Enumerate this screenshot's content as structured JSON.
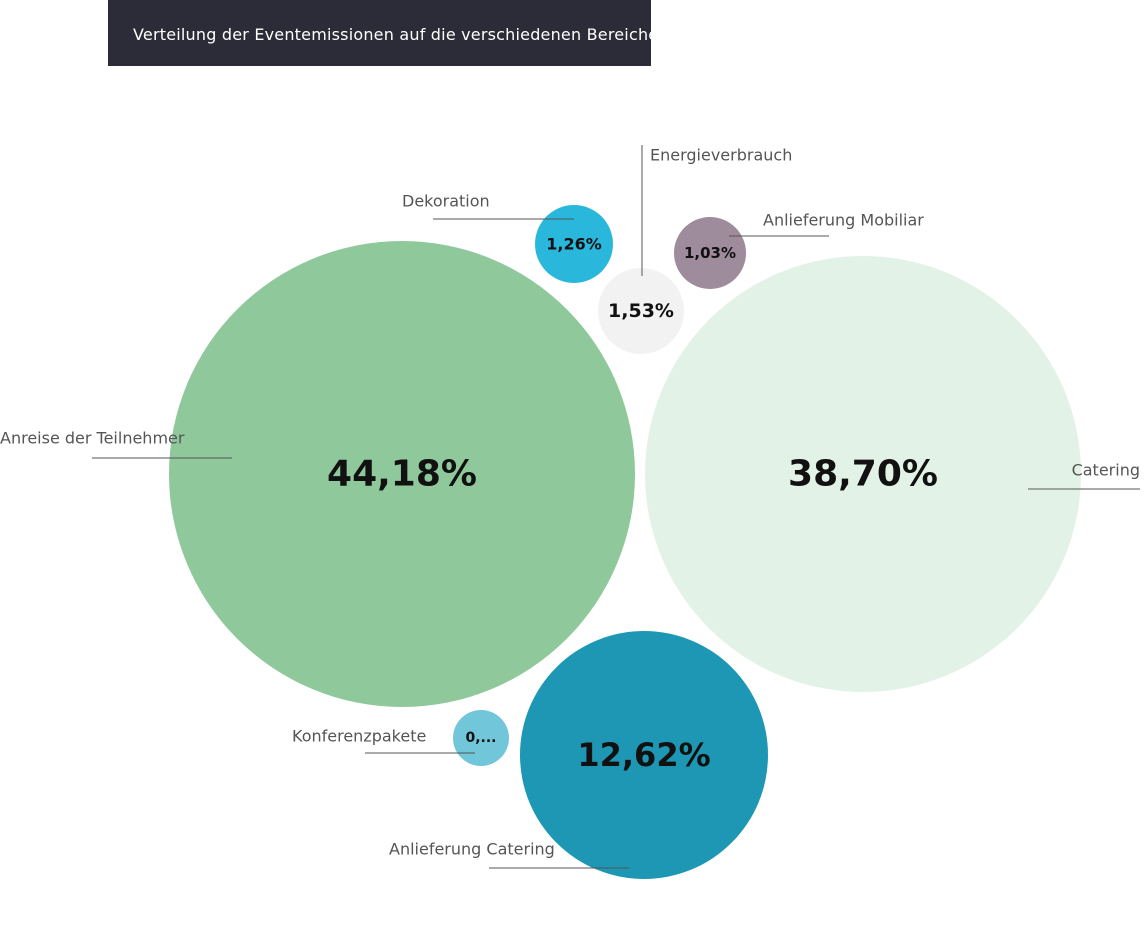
{
  "title": "Verteilung der Eventemissionen auf die verschiedenen Bereiche",
  "chart_data": {
    "type": "bubble",
    "unit": "%",
    "items": [
      {
        "label": "Anreise der Teilnehmer",
        "value": 44.18,
        "value_text": "44,18%",
        "color": "#8fc99b"
      },
      {
        "label": "Catering",
        "value": 38.7,
        "value_text": "38,70%",
        "color": "#e3f2e6"
      },
      {
        "label": "Anlieferung Catering",
        "value": 12.62,
        "value_text": "12,62%",
        "color": "#1d97b3"
      },
      {
        "label": "Energieverbrauch",
        "value": 1.53,
        "value_text": "1,53%",
        "color": "#f2f2f2"
      },
      {
        "label": "Dekoration",
        "value": 1.26,
        "value_text": "1,26%",
        "color": "#29b8dc"
      },
      {
        "label": "Anlieferung Mobiliar",
        "value": 1.03,
        "value_text": "1,03%",
        "color": "#9e8b9c"
      },
      {
        "label": "Konferenzpakete",
        "value": null,
        "value_text": "0,...",
        "color": "#72c6d9"
      }
    ]
  }
}
